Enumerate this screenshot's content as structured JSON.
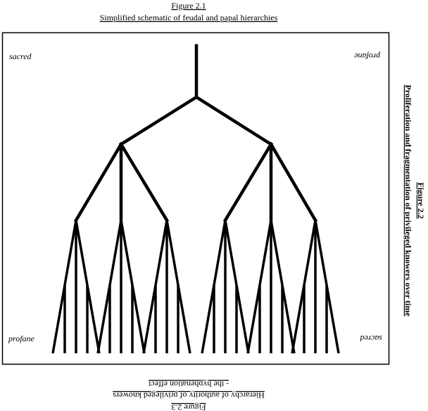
{
  "figure_2_1": {
    "label": "Figure 2.1",
    "caption": "Simplified schematic of feudal and papal hierarchies"
  },
  "corners": {
    "top_left": "sacred",
    "top_right": "profane",
    "bottom_left": "profane",
    "bottom_right": "sacred"
  },
  "figure_2_2": {
    "label": "Figure 2.2",
    "caption": "Proliferation and fragmentation of privileged knowers over time"
  },
  "figure_2_3": {
    "label": "Figure 2.3",
    "caption": "Hierarchy of authority of privileged knowers",
    "subcaption": "- the hyphenation effect"
  }
}
